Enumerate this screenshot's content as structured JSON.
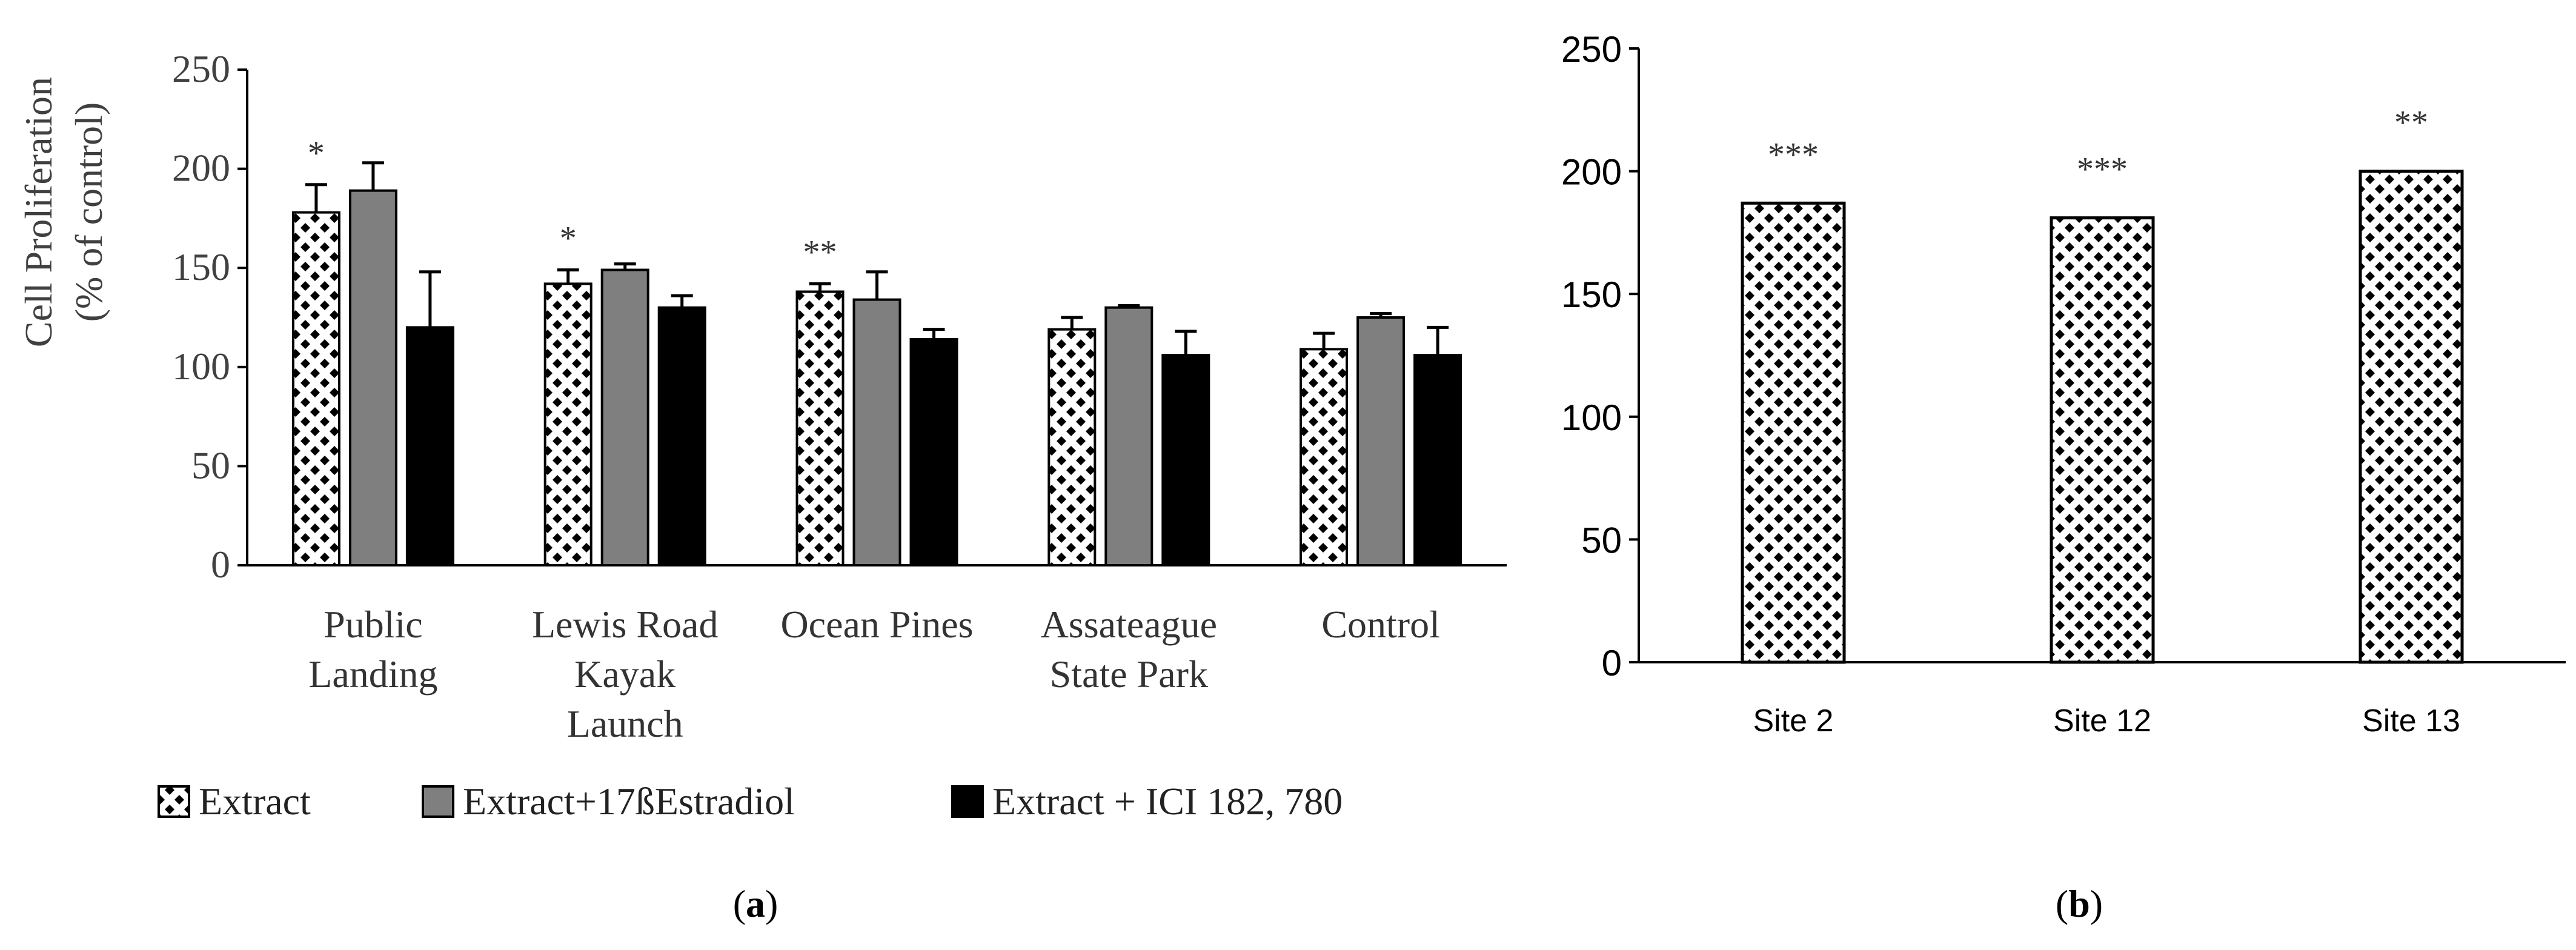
{
  "colors": {
    "extract": "#ffffff",
    "estradiol": "#7f7f7f",
    "ici": "#000000",
    "axis": "#000000",
    "text": "#333333"
  },
  "chart_data": [
    {
      "panel": "(a)",
      "panel_letter": "a",
      "type": "bar",
      "ylabel_line1": "Cell Proliferation",
      "ylabel_line2": "(% of control)",
      "xlabel": "",
      "ylim": [
        0,
        250
      ],
      "yticks": [
        0,
        50,
        100,
        150,
        200,
        250
      ],
      "categories": [
        [
          "Public",
          "Landing"
        ],
        [
          "Lewis Road",
          "Kayak",
          "Launch"
        ],
        [
          "Ocean Pines"
        ],
        [
          "Assateague",
          "State Park"
        ],
        [
          "Control"
        ]
      ],
      "series": [
        {
          "name": "Extract",
          "pattern": "checker",
          "values": [
            178,
            142,
            138,
            119,
            109
          ],
          "errors": [
            14,
            7,
            4,
            6,
            8
          ],
          "significance": [
            "*",
            "*",
            "**",
            "",
            ""
          ]
        },
        {
          "name": "Extract+17ßEstradiol",
          "pattern": "gray",
          "values": [
            189,
            149,
            134,
            130,
            125
          ],
          "errors": [
            14,
            3,
            14,
            1,
            2
          ],
          "significance": [
            "",
            "",
            "",
            "",
            ""
          ]
        },
        {
          "name": "Extract + ICI 182, 780",
          "pattern": "black",
          "values": [
            120,
            130,
            114,
            106,
            106
          ],
          "errors": [
            28,
            6,
            5,
            12,
            14
          ],
          "significance": [
            "",
            "",
            "",
            "",
            ""
          ]
        }
      ],
      "legend_position": "bottom"
    },
    {
      "panel": "(b)",
      "panel_letter": "b",
      "type": "bar",
      "xlabel": "",
      "ylabel": "",
      "ylim": [
        0,
        250
      ],
      "yticks": [
        0,
        50,
        100,
        150,
        200,
        250
      ],
      "categories": [
        "Site 2",
        "Site 12",
        "Site 13"
      ],
      "series": [
        {
          "name": "Extract",
          "pattern": "checker",
          "values": [
            187,
            181,
            200
          ],
          "significance": [
            "***",
            "***",
            "**"
          ]
        }
      ]
    }
  ]
}
